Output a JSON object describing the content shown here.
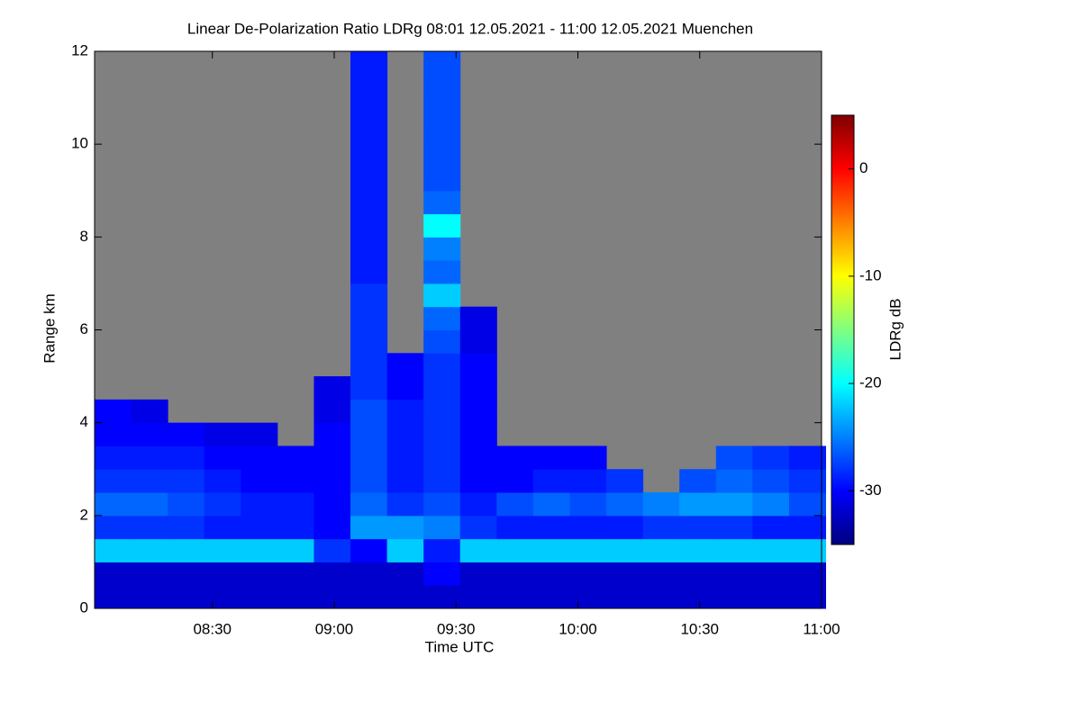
{
  "chart_data": {
    "type": "heatmap",
    "title": "Linear De-Polarization Ratio LDRg   08:01 12.05.2021 - 11:00 12.05.2021 Muenchen",
    "x_label": "Time UTC",
    "y_label": "Range km",
    "colorbar_label": "LDRg dB",
    "colormap": "jet",
    "null_color": "#808080",
    "xlim": [
      481,
      660
    ],
    "xticks": [
      {
        "value": 510,
        "label": "08:30"
      },
      {
        "value": 540,
        "label": "09:00"
      },
      {
        "value": 570,
        "label": "09:30"
      },
      {
        "value": 600,
        "label": "10:00"
      },
      {
        "value": 630,
        "label": "10:30"
      },
      {
        "value": 660,
        "label": "11:00"
      }
    ],
    "ylim": [
      0,
      12
    ],
    "yticks": [
      0,
      2,
      4,
      6,
      8,
      10,
      12
    ],
    "clim": [
      -35,
      5
    ],
    "cticks": [
      -30,
      -20,
      -10,
      0
    ],
    "x": [
      485.5,
      494.5,
      503.5,
      512.5,
      521.5,
      530.5,
      539.5,
      548.5,
      557.5,
      566.5,
      575.5,
      584.5,
      593.5,
      602.5,
      611.5,
      620.5,
      629.5,
      638.5,
      647.5,
      656.5
    ],
    "y": [
      0.25,
      0.75,
      1.25,
      1.75,
      2.25,
      2.75,
      3.25,
      3.75,
      4.25,
      4.75,
      5.25,
      5.75,
      6.25,
      6.75,
      7.25,
      7.75,
      8.25,
      8.75,
      9.25,
      9.75,
      10.25,
      10.75,
      11.25,
      11.75
    ],
    "values": [
      [
        -32,
        -32,
        -32,
        -32,
        -32,
        -32,
        -32,
        -32,
        -32,
        -32,
        -32,
        -32,
        -32,
        -32,
        -32,
        -32,
        -32,
        -32,
        -32,
        -32
      ],
      [
        -32,
        -32,
        -32,
        -32,
        -32,
        -32,
        -32,
        -32,
        -32,
        -30,
        -32,
        -32,
        -32,
        -32,
        -32,
        -32,
        -32,
        -32,
        -32,
        -32
      ],
      [
        -22,
        -22,
        -22,
        -22,
        -22,
        -22,
        -28,
        -30,
        -22,
        -29,
        -22,
        -22,
        -22,
        -22,
        -22,
        -22,
        -22,
        -22,
        -22,
        -22
      ],
      [
        -28,
        -28,
        -28,
        -29,
        -29,
        -29,
        -30,
        -24,
        -24,
        -25,
        -28,
        -29,
        -29,
        -29,
        -29,
        -28,
        -28,
        -28,
        -29,
        -29
      ],
      [
        -26,
        -26,
        -27,
        -28,
        -29,
        -29,
        -30,
        -26,
        -28,
        -27,
        -29,
        -27,
        -26,
        -27,
        -26,
        -25,
        -24,
        -24,
        -25,
        -27
      ],
      [
        -28,
        -28,
        -28,
        -29,
        -30,
        -30,
        -30,
        -27,
        -29,
        -28,
        -30,
        -30,
        -29,
        -29,
        -28,
        null,
        -27,
        -26,
        -27,
        -28
      ],
      [
        -29,
        -29,
        -29,
        -30,
        -30,
        -30,
        -30,
        -27,
        -29,
        -28,
        -30,
        -30,
        -30,
        -30,
        null,
        null,
        null,
        -27,
        -28,
        -29
      ],
      [
        -30,
        -30,
        -30,
        -31,
        -31,
        null,
        -30,
        -27,
        -29,
        -28,
        -30,
        null,
        null,
        null,
        null,
        null,
        null,
        null,
        null,
        null
      ],
      [
        -30,
        -31,
        null,
        null,
        null,
        null,
        -31,
        -27,
        -29,
        -28,
        -30,
        null,
        null,
        null,
        null,
        null,
        null,
        null,
        null,
        null
      ],
      [
        null,
        null,
        null,
        null,
        null,
        null,
        -31,
        -28,
        -30,
        -28,
        -30,
        null,
        null,
        null,
        null,
        null,
        null,
        null,
        null,
        null
      ],
      [
        null,
        null,
        null,
        null,
        null,
        null,
        null,
        -28,
        -30,
        -28,
        -30,
        null,
        null,
        null,
        null,
        null,
        null,
        null,
        null,
        null
      ],
      [
        null,
        null,
        null,
        null,
        null,
        null,
        null,
        -28,
        null,
        -27,
        -31,
        null,
        null,
        null,
        null,
        null,
        null,
        null,
        null,
        null
      ],
      [
        null,
        null,
        null,
        null,
        null,
        null,
        null,
        -28,
        null,
        -26,
        -31,
        null,
        null,
        null,
        null,
        null,
        null,
        null,
        null,
        null
      ],
      [
        null,
        null,
        null,
        null,
        null,
        null,
        null,
        -28,
        null,
        -22,
        null,
        null,
        null,
        null,
        null,
        null,
        null,
        null,
        null,
        null
      ],
      [
        null,
        null,
        null,
        null,
        null,
        null,
        null,
        -29,
        null,
        -26,
        null,
        null,
        null,
        null,
        null,
        null,
        null,
        null,
        null,
        null
      ],
      [
        null,
        null,
        null,
        null,
        null,
        null,
        null,
        -29,
        null,
        -25,
        null,
        null,
        null,
        null,
        null,
        null,
        null,
        null,
        null,
        null
      ],
      [
        null,
        null,
        null,
        null,
        null,
        null,
        null,
        -29,
        null,
        -20,
        null,
        null,
        null,
        null,
        null,
        null,
        null,
        null,
        null,
        null
      ],
      [
        null,
        null,
        null,
        null,
        null,
        null,
        null,
        -29,
        null,
        -26,
        null,
        null,
        null,
        null,
        null,
        null,
        null,
        null,
        null,
        null
      ],
      [
        null,
        null,
        null,
        null,
        null,
        null,
        null,
        -29,
        null,
        -27,
        null,
        null,
        null,
        null,
        null,
        null,
        null,
        null,
        null,
        null
      ],
      [
        null,
        null,
        null,
        null,
        null,
        null,
        null,
        -29,
        null,
        -27,
        null,
        null,
        null,
        null,
        null,
        null,
        null,
        null,
        null,
        null
      ],
      [
        null,
        null,
        null,
        null,
        null,
        null,
        null,
        -29,
        null,
        -27,
        null,
        null,
        null,
        null,
        null,
        null,
        null,
        null,
        null,
        null
      ],
      [
        null,
        null,
        null,
        null,
        null,
        null,
        null,
        -29,
        null,
        -27,
        null,
        null,
        null,
        null,
        null,
        null,
        null,
        null,
        null,
        null
      ],
      [
        null,
        null,
        null,
        null,
        null,
        null,
        null,
        -29,
        null,
        -27,
        null,
        null,
        null,
        null,
        null,
        null,
        null,
        null,
        null,
        null
      ],
      [
        null,
        null,
        null,
        null,
        null,
        null,
        null,
        -29,
        null,
        -27,
        null,
        null,
        null,
        null,
        null,
        null,
        null,
        null,
        null,
        null
      ]
    ]
  }
}
